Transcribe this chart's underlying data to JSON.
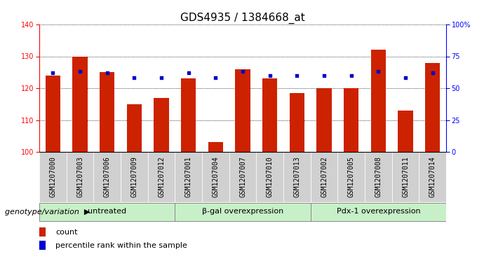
{
  "title": "GDS4935 / 1384668_at",
  "samples": [
    "GSM1207000",
    "GSM1207003",
    "GSM1207006",
    "GSM1207009",
    "GSM1207012",
    "GSM1207001",
    "GSM1207004",
    "GSM1207007",
    "GSM1207010",
    "GSM1207013",
    "GSM1207002",
    "GSM1207005",
    "GSM1207008",
    "GSM1207011",
    "GSM1207014"
  ],
  "bar_values": [
    124,
    130,
    125,
    115,
    117,
    123,
    103,
    126,
    123,
    118.5,
    120,
    120,
    132,
    113,
    128
  ],
  "percentile_values": [
    62,
    63,
    62,
    58,
    58,
    62,
    58,
    63,
    60,
    60,
    60,
    60,
    63,
    58,
    62
  ],
  "bar_color": "#cc2200",
  "dot_color": "#0000cc",
  "ylim_left": [
    100,
    140
  ],
  "ylim_right": [
    0,
    100
  ],
  "yticks_left": [
    100,
    110,
    120,
    130,
    140
  ],
  "yticks_right": [
    0,
    25,
    50,
    75,
    100
  ],
  "ytick_labels_right": [
    "0",
    "25",
    "50",
    "75",
    "100%"
  ],
  "groups": [
    {
      "label": "untreated",
      "start": 0,
      "end": 5
    },
    {
      "label": "β-gal overexpression",
      "start": 5,
      "end": 10
    },
    {
      "label": "Pdx-1 overexpression",
      "start": 10,
      "end": 15
    }
  ],
  "group_color_light": "#c8f0c8",
  "group_color_mid": "#88dd88",
  "bar_width": 0.55,
  "xlabel_area": "genotype/variation",
  "legend_count_label": "count",
  "legend_percentile_label": "percentile rank within the sample",
  "xtick_bg": "#d0d0d0",
  "title_fontsize": 11,
  "tick_fontsize": 7,
  "label_fontsize": 8,
  "group_label_fontsize": 8,
  "legend_fontsize": 8
}
